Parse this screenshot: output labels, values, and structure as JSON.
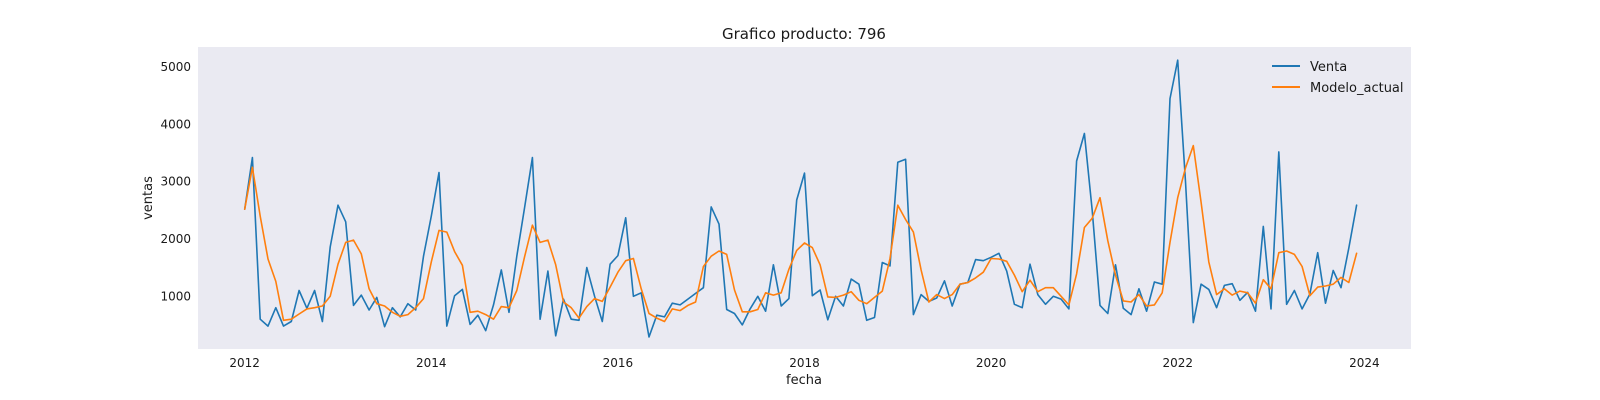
{
  "chart_data": {
    "type": "line",
    "title": "Grafico producto: 796",
    "xlabel": "fecha",
    "ylabel": "ventas",
    "x_start": "2012-01",
    "x_frequency": "monthly",
    "x_ticks": [
      "2012",
      "2014",
      "2016",
      "2018",
      "2020",
      "2022",
      "2024"
    ],
    "y_ticks": [
      1000,
      2000,
      3000,
      4000,
      5000
    ],
    "xlim": [
      "2011-07",
      "2024-07"
    ],
    "ylim": [
      80,
      5350
    ],
    "grid": false,
    "background": "#eaeaf2",
    "legend_position": "top-right",
    "series": [
      {
        "name": "Venta",
        "color": "#1f77b4",
        "values": [
          2520,
          3420,
          600,
          480,
          800,
          480,
          560,
          1100,
          790,
          1100,
          560,
          1860,
          2590,
          2300,
          840,
          1020,
          760,
          980,
          470,
          800,
          640,
          870,
          760,
          1700,
          2400,
          3160,
          480,
          1010,
          1120,
          510,
          670,
          400,
          850,
          1460,
          720,
          1700,
          2550,
          3420,
          600,
          1440,
          310,
          950,
          600,
          580,
          1500,
          1000,
          560,
          1560,
          1710,
          2370,
          1000,
          1060,
          290,
          670,
          640,
          880,
          850,
          950,
          1050,
          1150,
          2560,
          2260,
          770,
          700,
          500,
          780,
          1000,
          740,
          1550,
          830,
          960,
          2680,
          3150,
          1010,
          1110,
          590,
          1000,
          830,
          1300,
          1210,
          580,
          630,
          1590,
          1530,
          3340,
          3390,
          680,
          1030,
          910,
          970,
          1270,
          830,
          1210,
          1240,
          1640,
          1620,
          1680,
          1750,
          1440,
          860,
          800,
          1560,
          1030,
          860,
          1000,
          950,
          780,
          3360,
          3840,
          2500,
          840,
          700,
          1550,
          790,
          680,
          1130,
          740,
          1250,
          1210,
          4450,
          5120,
          3000,
          540,
          1210,
          1120,
          800,
          1190,
          1220,
          930,
          1070,
          740,
          2220,
          780,
          3520,
          860,
          1100,
          780,
          1040,
          1760,
          880,
          1450,
          1150,
          1840,
          2590
        ]
      },
      {
        "name": "Modelo_actual",
        "color": "#ff7f0e",
        "values": [
          2520,
          3250,
          2400,
          1650,
          1260,
          580,
          600,
          690,
          780,
          800,
          830,
          1000,
          1560,
          1940,
          1980,
          1740,
          1130,
          870,
          830,
          720,
          650,
          680,
          800,
          960,
          1600,
          2150,
          2120,
          1780,
          1540,
          720,
          740,
          680,
          600,
          820,
          800,
          1100,
          1690,
          2240,
          1940,
          1980,
          1550,
          900,
          800,
          620,
          820,
          960,
          910,
          1160,
          1420,
          1620,
          1660,
          1130,
          700,
          620,
          560,
          780,
          750,
          840,
          900,
          1520,
          1700,
          1790,
          1730,
          1110,
          730,
          730,
          770,
          1060,
          1020,
          1060,
          1470,
          1800,
          1930,
          1850,
          1550,
          990,
          980,
          1020,
          1080,
          930,
          870,
          980,
          1090,
          1660,
          2590,
          2340,
          2120,
          1460,
          900,
          1030,
          960,
          1030,
          1210,
          1240,
          1320,
          1420,
          1660,
          1650,
          1610,
          1370,
          1080,
          1280,
          1080,
          1150,
          1150,
          1000,
          850,
          1390,
          2200,
          2360,
          2720,
          1970,
          1370,
          920,
          900,
          1030,
          830,
          850,
          1060,
          1940,
          2720,
          3240,
          3630,
          2640,
          1600,
          1030,
          1130,
          1020,
          1090,
          1060,
          880,
          1290,
          1130,
          1760,
          1790,
          1730,
          1520,
          1010,
          1160,
          1180,
          1210,
          1330,
          1240,
          1750
        ]
      }
    ]
  }
}
